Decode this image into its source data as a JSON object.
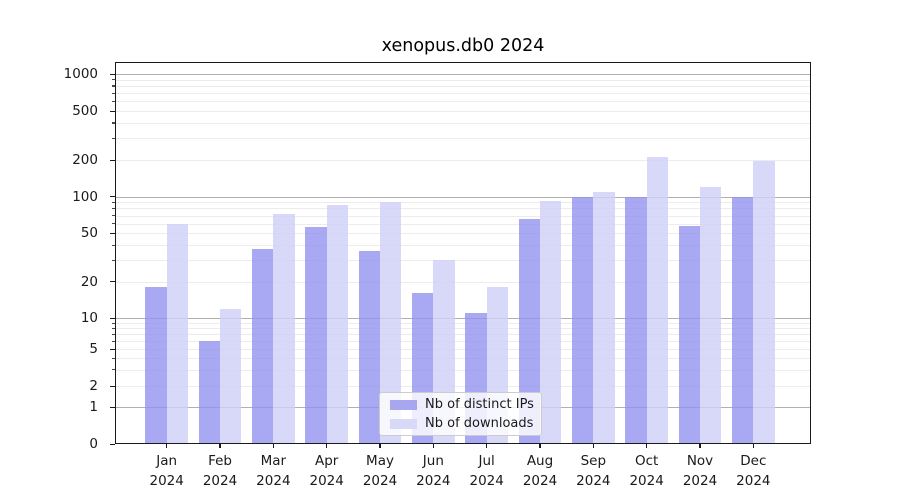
{
  "title": "xenopus.db0 2024",
  "chart_data": {
    "type": "bar",
    "title": "xenopus.db0 2024",
    "months": [
      "Jan",
      "Feb",
      "Mar",
      "Apr",
      "May",
      "Jun",
      "Jul",
      "Aug",
      "Sep",
      "Oct",
      "Nov",
      "Dec"
    ],
    "year": "2024",
    "series": [
      {
        "name": "Nb of distinct IPs",
        "color": "rgba(143,143,240,0.78)",
        "legend_color": "#a7a7ef",
        "values": [
          18,
          6,
          37,
          56,
          36,
          16,
          11,
          65,
          100,
          100,
          57,
          100
        ]
      },
      {
        "name": "Nb of downloads",
        "color": "rgba(208,208,246,0.82)",
        "legend_color": "#d8d8f7",
        "values": [
          60,
          12,
          72,
          85,
          90,
          30,
          18,
          92,
          110,
          210,
          120,
          195
        ]
      }
    ],
    "y_ticks": [
      0,
      1,
      2,
      5,
      10,
      20,
      50,
      100,
      200,
      500,
      1000
    ],
    "y_scale": "symlog",
    "ylim": [
      0,
      1255
    ],
    "grid": true,
    "legend_position": "inside-bottom-center",
    "colors": {
      "grid_major": "#b0b0b0",
      "grid_minor": "#ececec",
      "axis": "#1a1a1a",
      "text": "#1a1a1a",
      "background": "#ffffff"
    }
  }
}
